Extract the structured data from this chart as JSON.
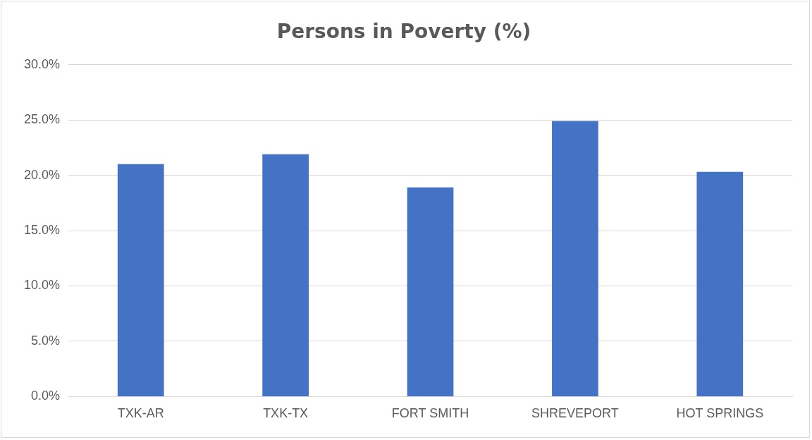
{
  "chart_data": {
    "type": "bar",
    "title": "Persons in Poverty (%)",
    "categories": [
      "TXK-AR",
      "TXK-TX",
      "FORT SMITH",
      "SHREVEPORT",
      "HOT SPRINGS"
    ],
    "values": [
      21.0,
      21.9,
      18.9,
      24.9,
      20.3
    ],
    "color": "#4472c4",
    "ylim": [
      0,
      30
    ],
    "yticks": [
      {
        "value": 0,
        "label": "0.0%"
      },
      {
        "value": 5,
        "label": "5.0%"
      },
      {
        "value": 10,
        "label": "10.0%"
      },
      {
        "value": 15,
        "label": "15.0%"
      },
      {
        "value": 20,
        "label": "20.0%"
      },
      {
        "value": 25,
        "label": "25.0%"
      },
      {
        "value": 30,
        "label": "30.0%"
      }
    ],
    "grid": "y",
    "legend": false
  }
}
